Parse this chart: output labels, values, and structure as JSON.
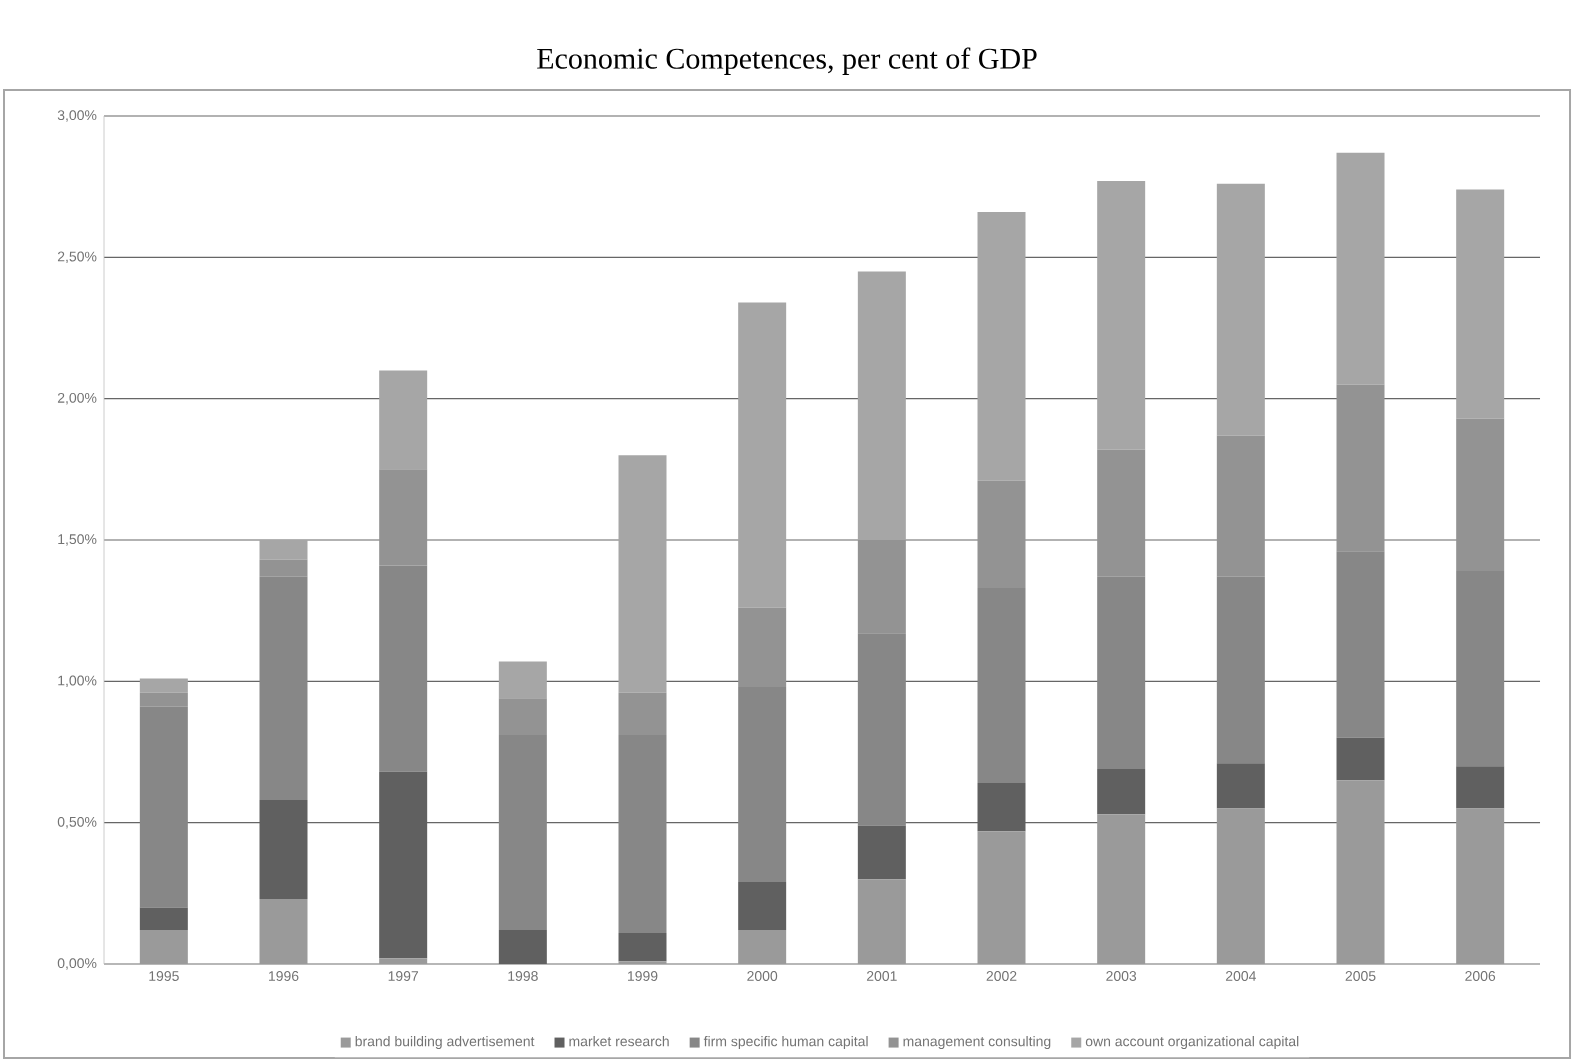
{
  "chart_data": {
    "type": "bar",
    "stacked": true,
    "title": "Economic Competences, per cent of GDP",
    "categories": [
      "1995",
      "1996",
      "1997",
      "1998",
      "1999",
      "2000",
      "2001",
      "2002",
      "2003",
      "2004",
      "2005",
      "2006"
    ],
    "series": [
      {
        "name": "brand building advertisement",
        "color": "#9a9a9a",
        "values": [
          0.12,
          0.23,
          0.02,
          0.0,
          0.01,
          0.12,
          0.3,
          0.47,
          0.53,
          0.55,
          0.65,
          0.55
        ]
      },
      {
        "name": "market research",
        "color": "#606060",
        "values": [
          0.08,
          0.35,
          0.66,
          0.12,
          0.1,
          0.17,
          0.19,
          0.17,
          0.16,
          0.16,
          0.15,
          0.15
        ]
      },
      {
        "name": "firm specific human capital",
        "color": "#878787",
        "values": [
          0.71,
          0.79,
          0.73,
          0.69,
          0.7,
          0.69,
          0.68,
          0.69,
          0.68,
          0.66,
          0.66,
          0.69
        ]
      },
      {
        "name": "management consulting",
        "color": "#939393",
        "values": [
          0.05,
          0.06,
          0.34,
          0.13,
          0.15,
          0.28,
          0.33,
          0.38,
          0.45,
          0.5,
          0.59,
          0.54
        ]
      },
      {
        "name": "own account organizational capital",
        "color": "#a6a6a6",
        "values": [
          0.05,
          0.07,
          0.35,
          0.13,
          0.84,
          1.08,
          0.95,
          0.95,
          0.95,
          0.89,
          0.82,
          0.81
        ]
      }
    ],
    "ylim": [
      0,
      3
    ],
    "yticks": [
      {
        "value": 0,
        "label": "0,00%"
      },
      {
        "value": 0.5,
        "label": "0,50%"
      },
      {
        "value": 1,
        "label": "1,00%"
      },
      {
        "value": 1.5,
        "label": "1,50%"
      },
      {
        "value": 2,
        "label": "2,00%"
      },
      {
        "value": 2.5,
        "label": "2,50%"
      },
      {
        "value": 3,
        "label": "3,00%"
      }
    ],
    "grid": "y",
    "legend": "bottom"
  }
}
